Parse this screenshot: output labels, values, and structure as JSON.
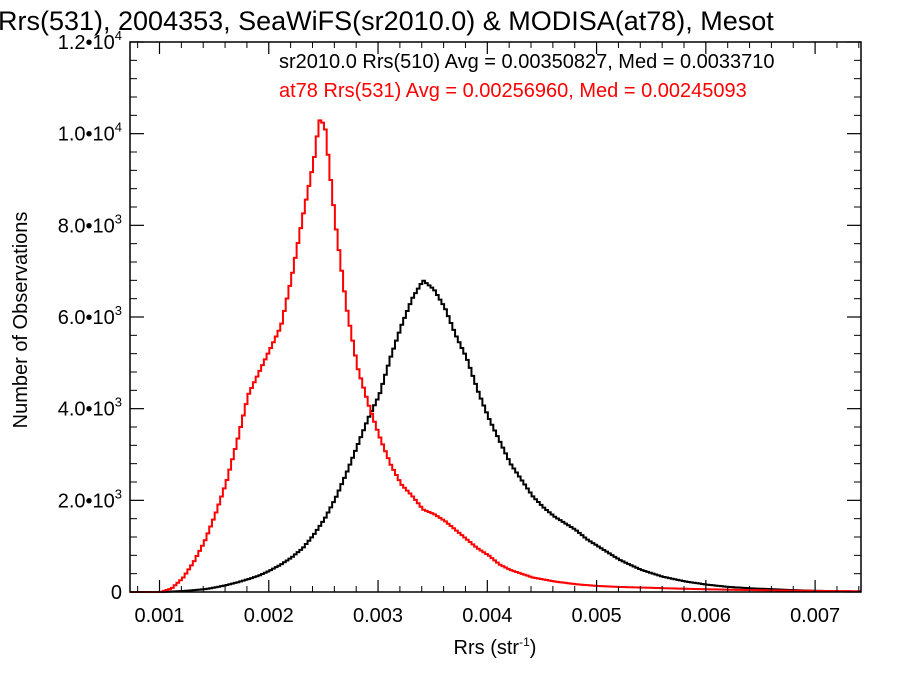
{
  "chart_data": {
    "type": "line",
    "title": "Rrs(531), 2004353, SeaWiFS(sr2010.0) & MODISA(at78), Mesot",
    "xlabel": "Rrs (str",
    "xlabel_sup": "-1",
    "xlabel_suffix": ")",
    "ylabel": "Number of Observations",
    "xlim": [
      0.00073,
      0.00742
    ],
    "ylim": [
      0,
      12000
    ],
    "grid": false,
    "x_ticks": [
      {
        "value": 0.001,
        "label": "0.001"
      },
      {
        "value": 0.002,
        "label": "0.002"
      },
      {
        "value": 0.003,
        "label": "0.003"
      },
      {
        "value": 0.004,
        "label": "0.004"
      },
      {
        "value": 0.005,
        "label": "0.005"
      },
      {
        "value": 0.006,
        "label": "0.006"
      },
      {
        "value": 0.007,
        "label": "0.007"
      }
    ],
    "y_ticks": [
      {
        "value": 0,
        "mant": "0",
        "exp": ""
      },
      {
        "value": 2000,
        "mant": "2.0•10",
        "exp": "3"
      },
      {
        "value": 4000,
        "mant": "4.0•10",
        "exp": "3"
      },
      {
        "value": 6000,
        "mant": "6.0•10",
        "exp": "3"
      },
      {
        "value": 8000,
        "mant": "8.0•10",
        "exp": "3"
      },
      {
        "value": 10000,
        "mant": "1.0•10",
        "exp": "4"
      },
      {
        "value": 12000,
        "mant": "1.2•10",
        "exp": "4"
      }
    ],
    "annotations": [
      "sr2010.0 Rrs(510) Avg = 0.00350827, Med = 0.0033710",
      "at78 Rrs(531) Avg = 0.00256960, Med = 0.00245093"
    ],
    "series": [
      {
        "name": "sr2010.0",
        "color": "#000000",
        "x": [
          0.00073,
          0.001,
          0.0012,
          0.0014,
          0.0015,
          0.0016,
          0.0017,
          0.0018,
          0.0019,
          0.002,
          0.0021,
          0.0022,
          0.0023,
          0.0024,
          0.0025,
          0.0026,
          0.0027,
          0.0028,
          0.0029,
          0.003,
          0.0031,
          0.0032,
          0.00325,
          0.0033,
          0.0034,
          0.0035,
          0.0036,
          0.0037,
          0.0038,
          0.0039,
          0.004,
          0.0041,
          0.0042,
          0.0043,
          0.0044,
          0.0045,
          0.0046,
          0.0047,
          0.0048,
          0.0049,
          0.005,
          0.0052,
          0.0054,
          0.0056,
          0.0058,
          0.006,
          0.0062,
          0.0064,
          0.0066,
          0.0068,
          0.007,
          0.0072,
          0.00742
        ],
        "y": [
          0,
          0,
          20,
          60,
          100,
          150,
          210,
          280,
          360,
          470,
          600,
          760,
          960,
          1250,
          1600,
          2050,
          2600,
          3200,
          3800,
          4300,
          5100,
          5800,
          6100,
          6400,
          6800,
          6600,
          6200,
          5600,
          5100,
          4400,
          3800,
          3300,
          2800,
          2450,
          2100,
          1850,
          1650,
          1500,
          1350,
          1150,
          1000,
          700,
          480,
          330,
          230,
          160,
          110,
          80,
          60,
          40,
          25,
          15,
          10
        ]
      },
      {
        "name": "at78",
        "color": "#ff0000",
        "x": [
          0.00073,
          0.001,
          0.0011,
          0.0012,
          0.0013,
          0.0014,
          0.0015,
          0.0016,
          0.0017,
          0.0018,
          0.0019,
          0.002,
          0.0021,
          0.0022,
          0.0023,
          0.0024,
          0.00245,
          0.0025,
          0.0026,
          0.0027,
          0.0028,
          0.0029,
          0.003,
          0.0031,
          0.0032,
          0.0033,
          0.0034,
          0.0035,
          0.0036,
          0.0037,
          0.0038,
          0.0039,
          0.004,
          0.0041,
          0.0042,
          0.0044,
          0.0046,
          0.0048,
          0.005,
          0.0052,
          0.0055,
          0.0058,
          0.0062,
          0.0066,
          0.007,
          0.00742
        ],
        "y": [
          0,
          0,
          80,
          300,
          650,
          1100,
          1700,
          2400,
          3300,
          4300,
          4800,
          5300,
          5800,
          6900,
          8200,
          9400,
          10300,
          10200,
          8000,
          6200,
          4900,
          4100,
          3400,
          2800,
          2350,
          2100,
          1800,
          1700,
          1550,
          1350,
          1150,
          950,
          800,
          600,
          480,
          320,
          230,
          170,
          130,
          110,
          90,
          70,
          50,
          35,
          25,
          15
        ]
      }
    ]
  }
}
